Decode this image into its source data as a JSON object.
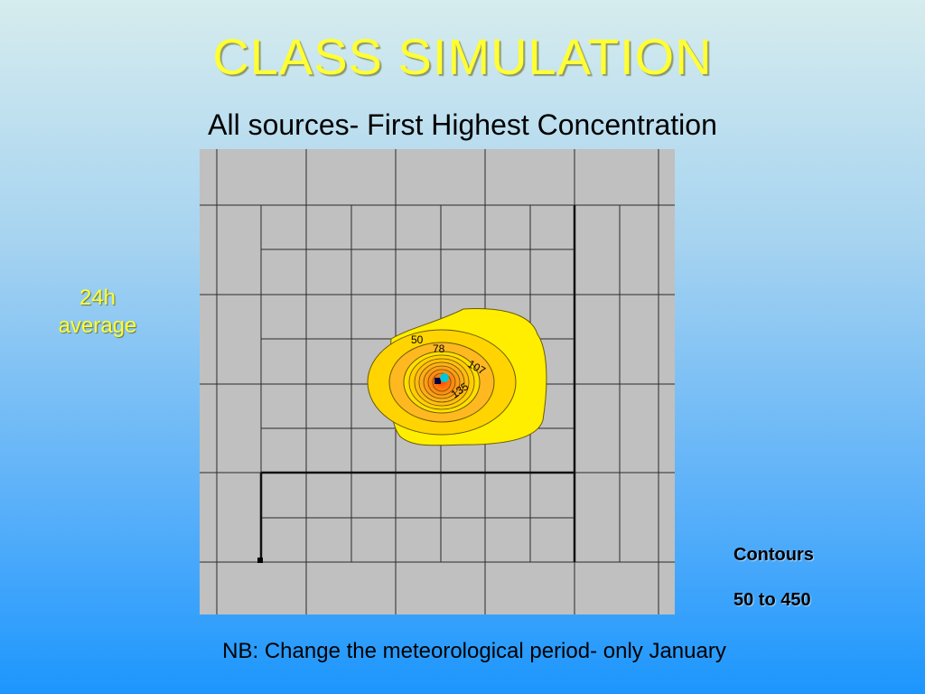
{
  "slide": {
    "title": "CLASS SIMULATION",
    "subtitle": "All sources- First Highest Concentration",
    "side_label_line1": "24h",
    "side_label_line2": "average",
    "contours_label": "Contours",
    "contours_range": "50 to 450",
    "note": "NB: Change the meteorological period- only January"
  },
  "map": {
    "contour_labels": [
      "50",
      "78",
      "107",
      "135"
    ],
    "colors": {
      "background": "#c0c0c0",
      "outer_contour": "#ffee00",
      "inner_contour": "#ff9a10",
      "source": "#00c8d8"
    }
  }
}
